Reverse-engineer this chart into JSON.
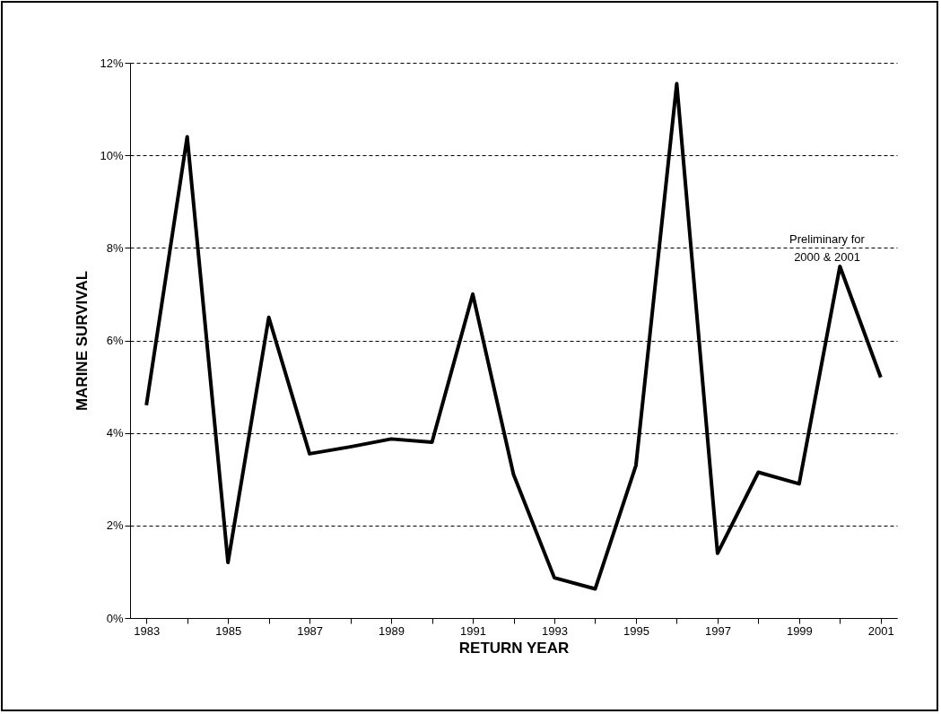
{
  "chart_data": {
    "type": "line",
    "xlabel": "RETURN YEAR",
    "ylabel": "MARINE SURVIVAL",
    "x": [
      1983,
      1984,
      1985,
      1986,
      1987,
      1988,
      1989,
      1990,
      1991,
      1992,
      1993,
      1994,
      1995,
      1996,
      1997,
      1998,
      1999,
      2000,
      2001
    ],
    "series": [
      {
        "color": "#000000",
        "values": [
          4.6,
          10.4,
          1.2,
          6.5,
          3.55,
          3.7,
          3.87,
          3.8,
          7.0,
          3.1,
          0.87,
          0.63,
          3.3,
          11.55,
          1.4,
          3.15,
          2.9,
          7.6,
          5.2
        ]
      }
    ],
    "xlim": [
      1982.6,
      2001.4
    ],
    "xticks": [
      1983,
      {
        "value": 1984,
        "label": null
      },
      1985,
      {
        "value": 1986,
        "label": null
      },
      1987,
      {
        "value": 1988,
        "label": null
      },
      1989,
      {
        "value": 1990,
        "label": null
      },
      1991,
      {
        "value": 1992,
        "label": null
      },
      1993,
      {
        "value": 1994,
        "label": null
      },
      1995,
      {
        "value": 1996,
        "label": null
      },
      1997,
      {
        "value": 1998,
        "label": null
      },
      1999,
      {
        "value": 2000,
        "label": null
      },
      2001
    ],
    "ylim": [
      0,
      12
    ],
    "yticks": [
      {
        "value": 0,
        "label": "0%"
      },
      {
        "value": 2,
        "label": "2%"
      },
      {
        "value": 4,
        "label": "4%"
      },
      {
        "value": 6,
        "label": "6%"
      },
      {
        "value": 8,
        "label": "8%"
      },
      {
        "value": 10,
        "label": "10%"
      },
      {
        "value": 12,
        "label": "12%"
      }
    ],
    "grid": "y",
    "line_style": "solid",
    "marker": "none",
    "annotations": [
      "Preliminary for\n2000 & 2001"
    ]
  }
}
